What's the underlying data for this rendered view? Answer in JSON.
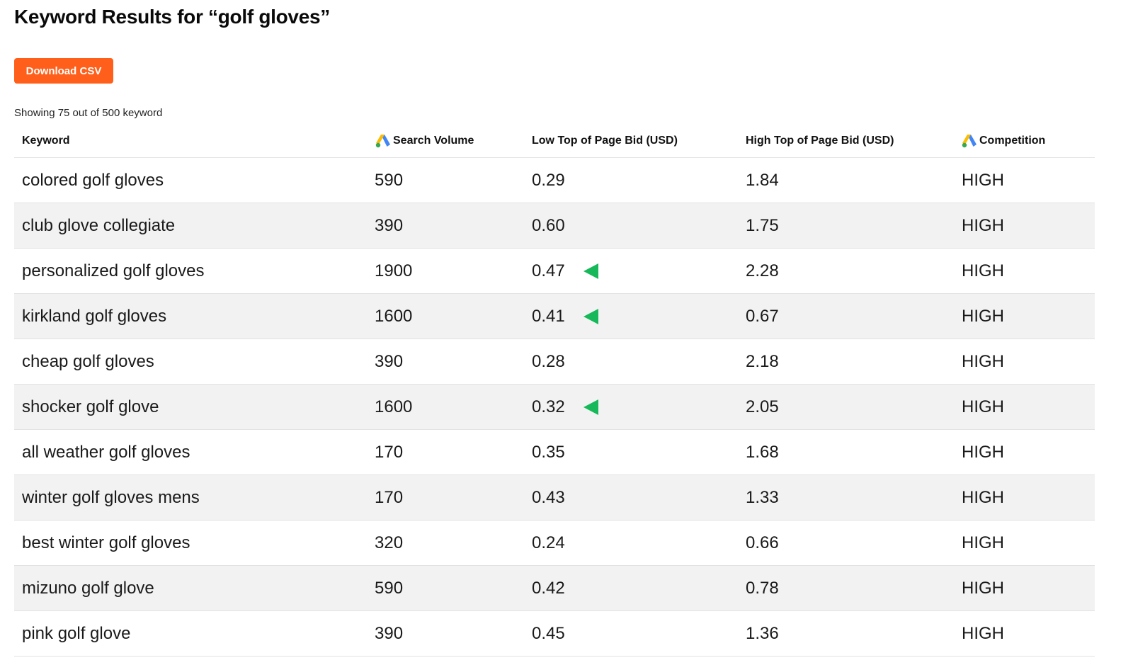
{
  "page": {
    "title": "Keyword Results for “golf gloves”",
    "download_label": "Download CSV",
    "showing_text": "Showing 75 out of 500 keyword"
  },
  "colors": {
    "accent": "#ff5f1a",
    "row_alt": "#f2f2f2",
    "indicator_green": "#17b85a"
  },
  "table": {
    "headers": {
      "keyword": "Keyword",
      "search_volume": "Search Volume",
      "low_bid": "Low Top of Page Bid (USD)",
      "high_bid": "High Top of Page Bid (USD)",
      "competition": "Competition"
    },
    "header_icons": {
      "search_volume": "google-ads-icon",
      "competition": "google-ads-icon"
    },
    "rows": [
      {
        "keyword": "colored golf gloves",
        "volume": "590",
        "low": "0.29",
        "high": "1.84",
        "competition": "HIGH",
        "indicator": false
      },
      {
        "keyword": "club glove collegiate",
        "volume": "390",
        "low": "0.60",
        "high": "1.75",
        "competition": "HIGH",
        "indicator": false
      },
      {
        "keyword": "personalized golf gloves",
        "volume": "1900",
        "low": "0.47",
        "high": "2.28",
        "competition": "HIGH",
        "indicator": true
      },
      {
        "keyword": "kirkland golf gloves",
        "volume": "1600",
        "low": "0.41",
        "high": "0.67",
        "competition": "HIGH",
        "indicator": true
      },
      {
        "keyword": "cheap golf gloves",
        "volume": "390",
        "low": "0.28",
        "high": "2.18",
        "competition": "HIGH",
        "indicator": false
      },
      {
        "keyword": "shocker golf glove",
        "volume": "1600",
        "low": "0.32",
        "high": "2.05",
        "competition": "HIGH",
        "indicator": true
      },
      {
        "keyword": "all weather golf gloves",
        "volume": "170",
        "low": "0.35",
        "high": "1.68",
        "competition": "HIGH",
        "indicator": false
      },
      {
        "keyword": "winter golf gloves mens",
        "volume": "170",
        "low": "0.43",
        "high": "1.33",
        "competition": "HIGH",
        "indicator": false
      },
      {
        "keyword": "best winter golf gloves",
        "volume": "320",
        "low": "0.24",
        "high": "0.66",
        "competition": "HIGH",
        "indicator": false
      },
      {
        "keyword": "mizuno golf glove",
        "volume": "590",
        "low": "0.42",
        "high": "0.78",
        "competition": "HIGH",
        "indicator": false
      },
      {
        "keyword": "pink golf glove",
        "volume": "390",
        "low": "0.45",
        "high": "1.36",
        "competition": "HIGH",
        "indicator": false
      }
    ]
  }
}
